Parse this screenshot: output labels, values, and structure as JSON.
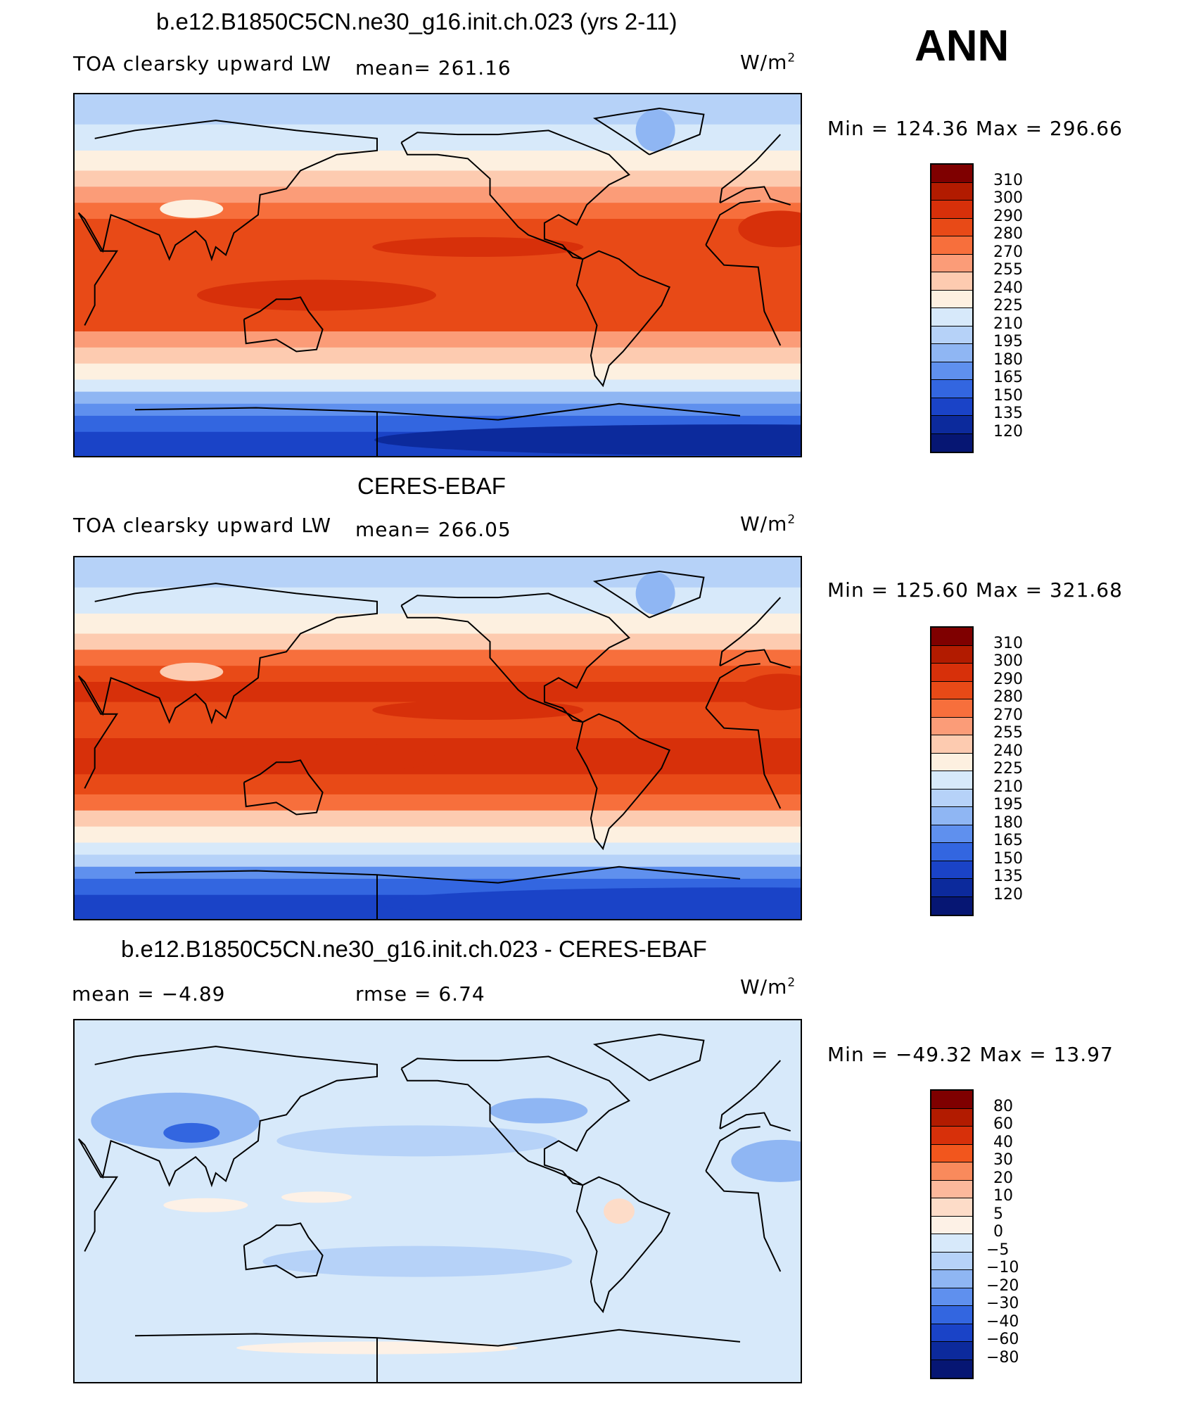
{
  "header": {
    "season": "ANN"
  },
  "panels": [
    {
      "title": "b.e12.B1850C5CN.ne30_g16.init.ch.023 (yrs 2-11)",
      "left_label": "TOA clearsky upward LW",
      "center_label": "mean=  261.16",
      "units_base": "W/m",
      "units_sup": "2",
      "minmax": "Min  =  124.36  Max  =  296.66",
      "colorbar_labels": [
        "310",
        "300",
        "290",
        "280",
        "270",
        "255",
        "240",
        "225",
        "210",
        "195",
        "180",
        "165",
        "150",
        "135",
        "120"
      ],
      "field": {
        "equator": 282,
        "itcz_band": 292,
        "subtrop": 286,
        "midlat": 252,
        "high_n": 208,
        "high_s": 190,
        "antarctica": 138,
        "greenland": 180,
        "tibet": 225
      }
    },
    {
      "title": "CERES-EBAF",
      "left_label": "TOA clearsky upward LW",
      "center_label": "mean=  266.05",
      "units_base": "W/m",
      "units_sup": "2",
      "minmax": "Min  =  125.60  Max  =  321.68",
      "colorbar_labels": [
        "310",
        "300",
        "290",
        "280",
        "270",
        "255",
        "240",
        "225",
        "210",
        "195",
        "180",
        "165",
        "150",
        "135",
        "120"
      ],
      "field": {
        "equator": 286,
        "itcz_band": 296,
        "subtrop": 292,
        "midlat": 255,
        "high_n": 210,
        "high_s": 195,
        "antarctica": 140,
        "greenland": 188,
        "tibet": 240
      }
    },
    {
      "title": "b.e12.B1850C5CN.ne30_g16.init.ch.023 - CERES-EBAF",
      "left_label": "mean  =     −4.89",
      "center_label": "rmse  =     6.74",
      "units_base": "W/m",
      "units_sup": "2",
      "minmax": "Min  =  −49.32  Max  =     13.97",
      "colorbar_labels": [
        "80",
        "60",
        "40",
        "30",
        "20",
        "10",
        "5",
        "0",
        "−5",
        "−10",
        "−20",
        "−30",
        "−40",
        "−60",
        "−80"
      ]
    }
  ],
  "colors": {
    "abs_scale": [
      "#7f0000",
      "#b21b00",
      "#d7300a",
      "#e84a17",
      "#f76f3c",
      "#fb9c78",
      "#fdcbb0",
      "#fdf0e0",
      "#d7e9fa",
      "#b6d2f8",
      "#8fb6f3",
      "#5f90ee",
      "#3366e0",
      "#1a43c7",
      "#0c2a9c",
      "#061673"
    ],
    "diff_scale": [
      "#7f0000",
      "#b21b00",
      "#d7300a",
      "#f2561d",
      "#f98a5c",
      "#fcb89b",
      "#fddcc8",
      "#fdf1e6",
      "#d7e9fa",
      "#b6d2f8",
      "#8fb6f3",
      "#5f90ee",
      "#3366e0",
      "#1a43c7",
      "#0c2a9c",
      "#061673"
    ]
  }
}
